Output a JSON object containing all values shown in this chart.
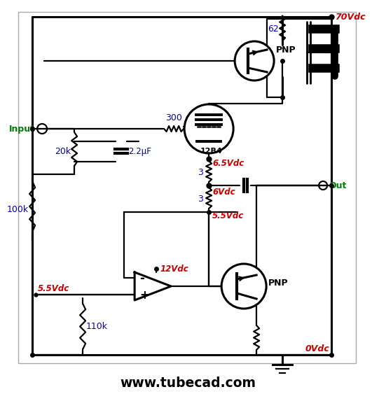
{
  "bg_color": "#ffffff",
  "line_color": "#000000",
  "blue_color": "#0000bb",
  "red_color": "#cc0000",
  "green_color": "#008000",
  "title_text": "www.tubecad.com",
  "fig_width": 5.0,
  "fig_height": 5.64,
  "labels": {
    "input": "Input",
    "output": "Out",
    "v70": "70Vdc",
    "v0": "0Vdc",
    "v65": "6.5Vdc",
    "v6": "6Vdc",
    "v55a": "5.5Vdc",
    "v55b": "5.5Vdc",
    "v12": "12Vdc",
    "r300": "300",
    "r62": "62",
    "r20k": "20k",
    "r100k": "100k",
    "r110k": "110k",
    "r3a": "3",
    "r3b": "3",
    "c22": "2.2μF",
    "pnp1": "PNP",
    "pnp2": "PNP",
    "tube": "12B4"
  }
}
